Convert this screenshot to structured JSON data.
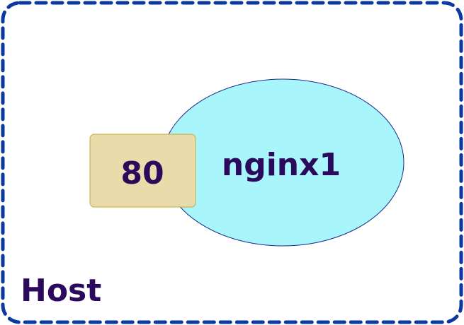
{
  "host": {
    "label": "Host"
  },
  "container": {
    "name": "nginx1"
  },
  "port": {
    "number": "80"
  },
  "colors": {
    "host_border": "#0a3aa0",
    "container_fill": "#a8f6fb",
    "container_stroke": "#1a2a8a",
    "port_fill": "#e8dcaa",
    "port_stroke": "#c9a83a",
    "text": "#2b0a5e"
  }
}
